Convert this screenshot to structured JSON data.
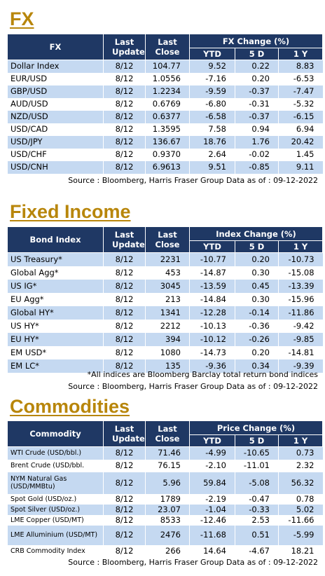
{
  "sections": [
    {
      "title": "FX",
      "header": {
        "name": "FX",
        "last_update": "Last Update",
        "last_close": "Last Close",
        "change": "FX Change (%)",
        "ytd": "YTD",
        "d5": "5 D",
        "y1": "1 Y"
      },
      "rows": [
        [
          "Dollar Index",
          "8/12",
          "104.77",
          "9.52",
          "0.22",
          "8.83"
        ],
        [
          "EUR/USD",
          "8/12",
          "1.0556",
          "-7.16",
          "0.20",
          "-6.53"
        ],
        [
          "GBP/USD",
          "8/12",
          "1.2234",
          "-9.59",
          "-0.37",
          "-7.47"
        ],
        [
          "AUD/USD",
          "8/12",
          "0.6769",
          "-6.80",
          "-0.31",
          "-5.32"
        ],
        [
          "NZD/USD",
          "8/12",
          "0.6377",
          "-6.58",
          "-0.37",
          "-6.15"
        ],
        [
          "USD/CAD",
          "8/12",
          "1.3595",
          "7.58",
          "0.94",
          "6.94"
        ],
        [
          "USD/JPY",
          "8/12",
          "136.67",
          "18.76",
          "1.76",
          "20.42"
        ],
        [
          "USD/CHF",
          "8/12",
          "0.9370",
          "2.64",
          "-0.02",
          "1.45"
        ],
        [
          "USD/CNH",
          "8/12",
          "6.9613",
          "9.51",
          "-0.85",
          "9.11"
        ]
      ],
      "notes": [
        "Source : Bloomberg, Harris Fraser Group Data as of : 09-12-2022"
      ]
    },
    {
      "title": "Fixed Income",
      "header": {
        "name": "Bond Index",
        "last_update": "Last Update",
        "last_close": "Last Close",
        "change": "Index Change (%)",
        "ytd": "YTD",
        "d5": "5 D",
        "y1": "1 Y"
      },
      "rows": [
        [
          "US Treasury*",
          "8/12",
          "2231",
          "-10.77",
          "0.20",
          "-10.73"
        ],
        [
          "Global Agg*",
          "8/12",
          "453",
          "-14.87",
          "0.30",
          "-15.08"
        ],
        [
          "US IG*",
          "8/12",
          "3045",
          "-13.59",
          "0.45",
          "-13.39"
        ],
        [
          "EU Agg*",
          "8/12",
          "213",
          "-14.84",
          "0.30",
          "-15.96"
        ],
        [
          "Global HY*",
          "8/12",
          "1341",
          "-12.28",
          "-0.14",
          "-11.86"
        ],
        [
          "US HY*",
          "8/12",
          "2212",
          "-10.13",
          "-0.36",
          "-9.42"
        ],
        [
          "EU HY*",
          "8/12",
          "394",
          "-10.12",
          "-0.26",
          "-9.85"
        ],
        [
          "EM USD*",
          "8/12",
          "1080",
          "-14.73",
          "0.20",
          "-14.81"
        ],
        [
          "EM LC*",
          "8/12",
          "135",
          "-9.36",
          "0.34",
          "-9.39"
        ]
      ],
      "notes": [
        "*All indices are Bloomberg Barclay total return bond indices",
        "Source : Bloomberg, Harris Fraser Group Data as of : 09-12-2022"
      ]
    },
    {
      "title": "Commodities",
      "header": {
        "name": "Commodity",
        "last_update": "Last Update",
        "last_close": "Last Close",
        "change": "Price Change (%)",
        "ytd": "YTD",
        "d5": "5 D",
        "y1": "1 Y"
      },
      "rows": [
        [
          "WTI Crude (USD/bbl.)",
          "8/12",
          "71.46",
          "-4.99",
          "-10.65",
          "0.73"
        ],
        [
          "Brent Crude (USD/bbl.",
          "8/12",
          "76.15",
          "-2.10",
          "-11.01",
          "2.32"
        ],
        [
          "NYM Natural Gas (USD/MMBtu)",
          "8/12",
          "5.96",
          "59.84",
          "-5.08",
          "56.32"
        ],
        [
          "Spot Gold (USD/oz.)",
          "8/12",
          "1789",
          "-2.19",
          "-0.47",
          "0.78"
        ],
        [
          "Spot Silver (USD/oz.)",
          "8/12",
          "23.07",
          "-1.04",
          "-0.33",
          "5.02"
        ],
        [
          "LME Copper (USD/MT)",
          "8/12",
          "8533",
          "-12.46",
          "2.53",
          "-11.66"
        ],
        [
          "LME Alluminium (USD/MT)",
          "8/12",
          "2476",
          "-11.68",
          "0.51",
          "-5.99"
        ],
        [
          "CRB Commodity Index",
          "8/12",
          "266",
          "14.64",
          "-4.67",
          "18.21"
        ]
      ],
      "notes": [
        "Source : Bloomberg, Harris Fraser Group Data as of : 09-12-2022"
      ]
    }
  ]
}
